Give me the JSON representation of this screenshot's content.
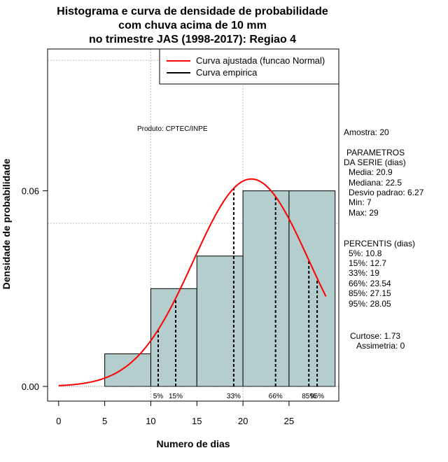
{
  "chart_data": {
    "type": "bar",
    "title_lines": [
      "Histograma e curva de densidade de probabilidade",
      "com chuva acima de 10 mm",
      "no trimestre JAS (1998-2017): Regiao 4"
    ],
    "xlabel": "Numero de dias",
    "ylabel": "Densidade de probabilidade",
    "xlim": [
      -1.2,
      30.4
    ],
    "ylim": [
      -0.0045,
      0.1035
    ],
    "x_ticks": [
      0,
      5,
      10,
      15,
      20,
      25
    ],
    "y_ticks": [
      {
        "value": 0.0,
        "label": "0.00"
      },
      {
        "value": 0.06,
        "label": "0.06"
      }
    ],
    "grid_x": [
      10,
      20
    ],
    "grid_y": [
      0.05,
      0.1
    ],
    "bins": [
      {
        "from": 5,
        "to": 10,
        "density": 0.01
      },
      {
        "from": 10,
        "to": 15,
        "density": 0.03
      },
      {
        "from": 15,
        "to": 20,
        "density": 0.04
      },
      {
        "from": 20,
        "to": 25,
        "density": 0.06
      },
      {
        "from": 25,
        "to": 30,
        "density": 0.06
      }
    ],
    "bar_color": "#b4cdcd",
    "fitted_curve": {
      "label": "Curva ajustada (funcao Normal)",
      "color": "#ff0000",
      "mean": 20.9,
      "sd": 6.27,
      "x_range": [
        0,
        29
      ]
    },
    "empirical_legend": {
      "label": "Curva empirica",
      "color": "#000000"
    },
    "percentile_lines": [
      {
        "label": "5%",
        "value": 10.8
      },
      {
        "label": "15%",
        "value": 12.7
      },
      {
        "label": "33%",
        "value": 19
      },
      {
        "label": "66%",
        "value": 23.54
      },
      {
        "label": "85%",
        "value": 27.15
      },
      {
        "label": "95%",
        "value": 28.05
      }
    ],
    "annotation": "Produto: CPTEC/INPE",
    "legend_position": "top-right"
  },
  "side_panel": {
    "amostra": "Amostra: 20",
    "parametros_title": "PARAMETROS",
    "serie_title": "DA SERIE (dias)",
    "media": "Media: 20.9",
    "mediana": "Mediana: 22.5",
    "desvio": "Desvio padrao: 6.27",
    "min": "Min: 7",
    "max": "Max: 29",
    "percentis_title": "PERCENTIS (dias)",
    "p5": "5%: 10.8",
    "p15": "15%: 12.7",
    "p33": "33%: 19",
    "p66": "66%: 23.54",
    "p85": "85%: 27.15",
    "p95": "95%: 28.05",
    "curtose": "Curtose: 1.73",
    "assimetria": "Assimetria: 0"
  }
}
